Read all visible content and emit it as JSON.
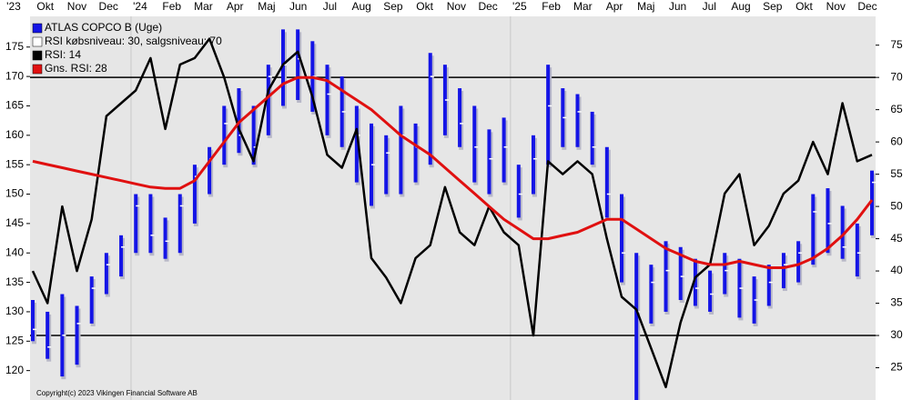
{
  "chart_data": {
    "type": "stock",
    "months": [
      "'23",
      "Okt",
      "Nov",
      "Dec",
      "'24",
      "Feb",
      "Mar",
      "Apr",
      "Maj",
      "Jun",
      "Jul",
      "Aug",
      "Sep",
      "Okt",
      "Nov",
      "Dec",
      "'25",
      "Feb",
      "Mar",
      "Apr",
      "Maj",
      "Jun",
      "Jul",
      "Aug",
      "Sep",
      "Okt",
      "Nov",
      "Dec"
    ],
    "ylim": [
      115,
      183
    ],
    "yticks": [
      120,
      125,
      130,
      135,
      140,
      145,
      150,
      155,
      160,
      165,
      170,
      175
    ],
    "y2lim": [
      20,
      82
    ],
    "y2ticks": [
      25,
      30,
      35,
      40,
      45,
      50,
      55,
      60,
      65,
      70,
      75
    ],
    "rsi_levels": [
      30,
      70
    ],
    "levels_text": "RSI købsniveau: 30, salgsniveau: 70",
    "copyright": "Copyright(c) 2023 Vikingen Financial Software AB",
    "series": [
      {
        "name": "ATLAS COPCO B (Uge)",
        "color": "#1414e6",
        "high": [
          132,
          130,
          133,
          131,
          136,
          140,
          143,
          150,
          150,
          146,
          150,
          155,
          158,
          165,
          168,
          165,
          172,
          178,
          178,
          176,
          172,
          170,
          165,
          162,
          160,
          165,
          162,
          174,
          172,
          168,
          165,
          161,
          163,
          155,
          160,
          172,
          168,
          167,
          164,
          158,
          150,
          140,
          138,
          142,
          141,
          139,
          137,
          140,
          139,
          136,
          138,
          140,
          142,
          150,
          151,
          148,
          145,
          154
        ],
        "low": [
          125,
          122,
          119,
          121,
          128,
          133,
          136,
          140,
          140,
          139,
          140,
          145,
          150,
          155,
          157,
          155,
          160,
          165,
          166,
          164,
          160,
          158,
          152,
          148,
          150,
          150,
          152,
          155,
          160,
          158,
          152,
          150,
          152,
          146,
          150,
          155,
          158,
          158,
          155,
          146,
          135,
          115,
          128,
          130,
          132,
          131,
          130,
          133,
          129,
          128,
          131,
          134,
          135,
          138,
          140,
          139,
          136,
          143
        ],
        "close": [
          127,
          124,
          126,
          128,
          134,
          138,
          141,
          148,
          143,
          142,
          148,
          153,
          156,
          162,
          160,
          158,
          170,
          172,
          173,
          170,
          167,
          164,
          160,
          155,
          157,
          160,
          158,
          170,
          166,
          162,
          158,
          156,
          158,
          150,
          156,
          165,
          163,
          164,
          158,
          150,
          140,
          130,
          135,
          137,
          136,
          134,
          133,
          137,
          134,
          132,
          135,
          138,
          140,
          147,
          145,
          141,
          140,
          152
        ]
      },
      {
        "name": "RSI: 14",
        "color": "#000000",
        "axis": "y2",
        "values": [
          40,
          35,
          50,
          40,
          48,
          64,
          66,
          68,
          73,
          62,
          72,
          73,
          76,
          70,
          62,
          57,
          68,
          72,
          74,
          67,
          58,
          56,
          62,
          42,
          39,
          35,
          42,
          44,
          53,
          46,
          44,
          50,
          46,
          44,
          30,
          57,
          55,
          57,
          55,
          45,
          36,
          34,
          28,
          22,
          32,
          39,
          41,
          52,
          55,
          44,
          47,
          52,
          54,
          60,
          55,
          66,
          57,
          58
        ]
      },
      {
        "name": "Gns. RSI: 28",
        "color": "#e01010",
        "axis": "y2",
        "values": [
          57,
          56.5,
          56,
          55.5,
          55,
          54.5,
          54,
          53.5,
          53,
          52.8,
          52.8,
          54,
          57,
          60,
          63,
          65,
          67,
          69,
          70,
          70,
          69.5,
          68,
          66.5,
          65,
          63,
          61,
          59.5,
          58,
          56,
          54,
          52,
          50,
          48,
          46.5,
          45,
          45,
          45.5,
          46,
          47,
          48,
          48,
          46.5,
          45,
          43.5,
          42.5,
          41.5,
          41,
          41,
          41.5,
          41,
          40.5,
          40.5,
          41,
          42,
          43.5,
          45.5,
          48,
          51
        ]
      }
    ]
  }
}
